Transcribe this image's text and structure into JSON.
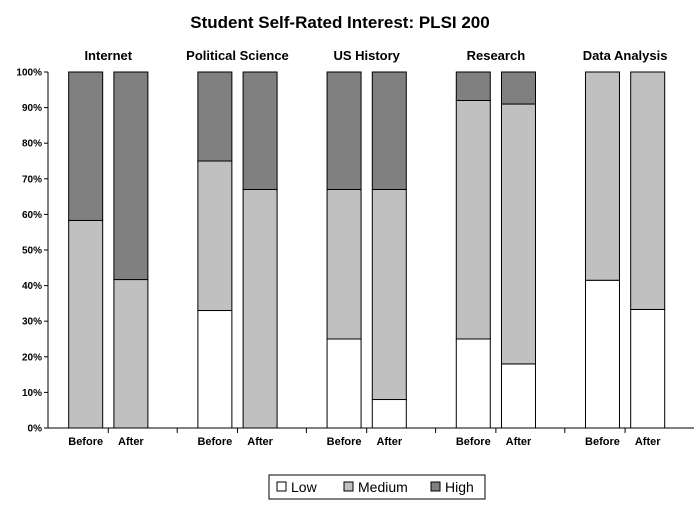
{
  "chart_data": {
    "type": "bar",
    "stacked": true,
    "normalized": true,
    "title": "Student Self-Rated Interest: PLSI 200",
    "groups": [
      "Internet",
      "Political Science",
      "US History",
      "Research",
      "Data Analysis"
    ],
    "categories": [
      "Before",
      "After"
    ],
    "ylim": [
      0,
      100
    ],
    "yticks": [
      "0%",
      "10%",
      "20%",
      "30%",
      "40%",
      "50%",
      "60%",
      "70%",
      "80%",
      "90%",
      "100%"
    ],
    "grid": false,
    "legend_position": "bottom",
    "series": [
      {
        "name": "Low",
        "color": "#ffffff",
        "values": [
          [
            0,
            0
          ],
          [
            33,
            0
          ],
          [
            25,
            8
          ],
          [
            25,
            18
          ],
          [
            41.5,
            33.3
          ]
        ]
      },
      {
        "name": "Medium",
        "color": "#c0c0c0",
        "values": [
          [
            58.3,
            41.7
          ],
          [
            42,
            67
          ],
          [
            42,
            59
          ],
          [
            67,
            73
          ],
          [
            58.5,
            66.7
          ]
        ]
      },
      {
        "name": "High",
        "color": "#808080",
        "values": [
          [
            41.7,
            58.3
          ],
          [
            25,
            33
          ],
          [
            33,
            33
          ],
          [
            8,
            9
          ],
          [
            0,
            0
          ]
        ]
      }
    ]
  }
}
